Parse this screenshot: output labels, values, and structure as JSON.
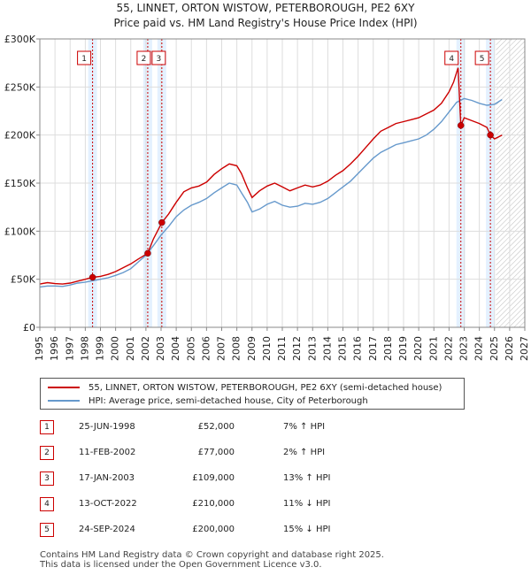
{
  "title_line1": "55, LINNET, ORTON WISTOW, PETERBOROUGH, PE2 6XY",
  "title_line2": "Price paid vs. HM Land Registry's House Price Index (HPI)",
  "chart_data": {
    "type": "line",
    "ylim": [
      0,
      300000
    ],
    "xlim": [
      1995,
      2027
    ],
    "y_ticks": [
      0,
      50000,
      100000,
      150000,
      200000,
      250000,
      300000
    ],
    "y_tick_labels": [
      "£0",
      "£50K",
      "£100K",
      "£150K",
      "£200K",
      "£250K",
      "£300K"
    ],
    "x_ticks": [
      1995,
      1996,
      1997,
      1998,
      1999,
      2000,
      2001,
      2002,
      2003,
      2004,
      2005,
      2006,
      2007,
      2008,
      2009,
      2010,
      2011,
      2012,
      2013,
      2014,
      2015,
      2016,
      2017,
      2018,
      2019,
      2020,
      2021,
      2022,
      2023,
      2024,
      2025,
      2026,
      2027
    ],
    "series": [
      {
        "name": "55, LINNET, ORTON WISTOW, PETERBOROUGH, PE2 6XY (semi-detached house)",
        "color": "#cc0000",
        "points": [
          [
            1995.0,
            45000
          ],
          [
            1995.5,
            46500
          ],
          [
            1996.0,
            45500
          ],
          [
            1996.5,
            45000
          ],
          [
            1997.0,
            46000
          ],
          [
            1997.5,
            48000
          ],
          [
            1998.0,
            50000
          ],
          [
            1998.48,
            52000
          ],
          [
            1999.0,
            53000
          ],
          [
            1999.5,
            55000
          ],
          [
            2000.0,
            58000
          ],
          [
            2000.5,
            62000
          ],
          [
            2001.0,
            66000
          ],
          [
            2001.5,
            71000
          ],
          [
            2002.12,
            77000
          ],
          [
            2002.5,
            92000
          ],
          [
            2003.05,
            109000
          ],
          [
            2003.5,
            118000
          ],
          [
            2004.0,
            130000
          ],
          [
            2004.5,
            141000
          ],
          [
            2005.0,
            145000
          ],
          [
            2005.5,
            147000
          ],
          [
            2006.0,
            151000
          ],
          [
            2006.5,
            159000
          ],
          [
            2007.0,
            165000
          ],
          [
            2007.5,
            170000
          ],
          [
            2008.0,
            168000
          ],
          [
            2008.3,
            160000
          ],
          [
            2008.7,
            145000
          ],
          [
            2009.0,
            135000
          ],
          [
            2009.5,
            142000
          ],
          [
            2010.0,
            147000
          ],
          [
            2010.5,
            150000
          ],
          [
            2011.0,
            146000
          ],
          [
            2011.5,
            142000
          ],
          [
            2012.0,
            145000
          ],
          [
            2012.5,
            148000
          ],
          [
            2013.0,
            146000
          ],
          [
            2013.5,
            148000
          ],
          [
            2014.0,
            152000
          ],
          [
            2014.5,
            158000
          ],
          [
            2015.0,
            163000
          ],
          [
            2015.5,
            170000
          ],
          [
            2016.0,
            178000
          ],
          [
            2016.5,
            187000
          ],
          [
            2017.0,
            196000
          ],
          [
            2017.5,
            204000
          ],
          [
            2018.0,
            208000
          ],
          [
            2018.5,
            212000
          ],
          [
            2019.0,
            214000
          ],
          [
            2019.5,
            216000
          ],
          [
            2020.0,
            218000
          ],
          [
            2020.5,
            222000
          ],
          [
            2021.0,
            226000
          ],
          [
            2021.5,
            233000
          ],
          [
            2022.0,
            245000
          ],
          [
            2022.3,
            255000
          ],
          [
            2022.6,
            270000
          ],
          [
            2022.78,
            210000
          ],
          [
            2023.0,
            218000
          ],
          [
            2023.5,
            215000
          ],
          [
            2024.0,
            212000
          ],
          [
            2024.5,
            208000
          ],
          [
            2024.73,
            200000
          ],
          [
            2025.0,
            196000
          ],
          [
            2025.5,
            200000
          ]
        ]
      },
      {
        "name": "HPI: Average price, semi-detached house, City of Peterborough",
        "color": "#6699cc",
        "points": [
          [
            1995.0,
            42000
          ],
          [
            1995.5,
            43000
          ],
          [
            1996.0,
            43000
          ],
          [
            1996.5,
            42500
          ],
          [
            1997.0,
            44000
          ],
          [
            1997.5,
            46000
          ],
          [
            1998.0,
            47000
          ],
          [
            1998.5,
            48500
          ],
          [
            1999.0,
            50000
          ],
          [
            1999.5,
            51500
          ],
          [
            2000.0,
            54000
          ],
          [
            2000.5,
            57000
          ],
          [
            2001.0,
            61000
          ],
          [
            2001.5,
            68000
          ],
          [
            2002.0,
            75000
          ],
          [
            2002.5,
            85000
          ],
          [
            2003.0,
            96000
          ],
          [
            2003.5,
            105000
          ],
          [
            2004.0,
            115000
          ],
          [
            2004.5,
            122000
          ],
          [
            2005.0,
            127000
          ],
          [
            2005.5,
            130000
          ],
          [
            2006.0,
            134000
          ],
          [
            2006.5,
            140000
          ],
          [
            2007.0,
            145000
          ],
          [
            2007.5,
            150000
          ],
          [
            2008.0,
            148000
          ],
          [
            2008.3,
            140000
          ],
          [
            2008.7,
            130000
          ],
          [
            2009.0,
            120000
          ],
          [
            2009.5,
            123000
          ],
          [
            2010.0,
            128000
          ],
          [
            2010.5,
            131000
          ],
          [
            2011.0,
            127000
          ],
          [
            2011.5,
            125000
          ],
          [
            2012.0,
            126000
          ],
          [
            2012.5,
            129000
          ],
          [
            2013.0,
            128000
          ],
          [
            2013.5,
            130000
          ],
          [
            2014.0,
            134000
          ],
          [
            2014.5,
            140000
          ],
          [
            2015.0,
            146000
          ],
          [
            2015.5,
            152000
          ],
          [
            2016.0,
            160000
          ],
          [
            2016.5,
            168000
          ],
          [
            2017.0,
            176000
          ],
          [
            2017.5,
            182000
          ],
          [
            2018.0,
            186000
          ],
          [
            2018.5,
            190000
          ],
          [
            2019.0,
            192000
          ],
          [
            2019.5,
            194000
          ],
          [
            2020.0,
            196000
          ],
          [
            2020.5,
            200000
          ],
          [
            2021.0,
            206000
          ],
          [
            2021.5,
            214000
          ],
          [
            2022.0,
            224000
          ],
          [
            2022.5,
            234000
          ],
          [
            2023.0,
            238000
          ],
          [
            2023.5,
            236000
          ],
          [
            2024.0,
            233000
          ],
          [
            2024.5,
            231000
          ],
          [
            2025.0,
            232000
          ],
          [
            2025.5,
            237000
          ]
        ]
      }
    ],
    "sales": [
      {
        "label": "1",
        "x": 1998.48,
        "price": 52000
      },
      {
        "label": "2",
        "x": 2002.12,
        "price": 77000
      },
      {
        "label": "3",
        "x": 2003.05,
        "price": 109000
      },
      {
        "label": "4",
        "x": 2022.78,
        "price": 210000
      },
      {
        "label": "5",
        "x": 2024.73,
        "price": 200000
      }
    ],
    "forecast_start": 2025.1,
    "sale_band_color": "#ddeeff",
    "forecast_hatch_color": "#bbbbbb"
  },
  "legend": {
    "red_label": "55, LINNET, ORTON WISTOW, PETERBOROUGH, PE2 6XY (semi-detached house)",
    "blue_label": "HPI: Average price, semi-detached house, City of Peterborough"
  },
  "transactions": [
    {
      "num": "1",
      "date": "25-JUN-1998",
      "price": "£52,000",
      "hpi": "7% ↑ HPI"
    },
    {
      "num": "2",
      "date": "11-FEB-2002",
      "price": "£77,000",
      "hpi": "2% ↑ HPI"
    },
    {
      "num": "3",
      "date": "17-JAN-2003",
      "price": "£109,000",
      "hpi": "13% ↑ HPI"
    },
    {
      "num": "4",
      "date": "13-OCT-2022",
      "price": "£210,000",
      "hpi": "11% ↓ HPI"
    },
    {
      "num": "5",
      "date": "24-SEP-2024",
      "price": "£200,000",
      "hpi": "15% ↓ HPI"
    }
  ],
  "footer_line1": "Contains HM Land Registry data © Crown copyright and database right 2025.",
  "footer_line2": "This data is licensed under the Open Government Licence v3.0."
}
